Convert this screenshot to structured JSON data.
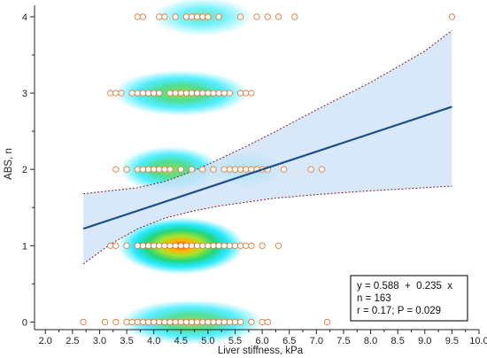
{
  "chart_data": {
    "type": "scatter",
    "xlabel": "Liver stiffness, kPa",
    "ylabel": "ABS, n",
    "xlim": [
      1.8,
      10.0
    ],
    "ylim": [
      -0.1,
      4.15
    ],
    "xticks": [
      "2.0",
      "2.5",
      "3.0",
      "3.5",
      "4.0",
      "4.5",
      "5.0",
      "5.5",
      "6.0",
      "6.5",
      "7.0",
      "7.5",
      "8.0",
      "8.5",
      "9.0",
      "9.5",
      "10.0"
    ],
    "yticks": [
      "0",
      "1",
      "2",
      "3",
      "4"
    ],
    "colors": {
      "regression_line": "#1b4f8a",
      "confidence_band": "#cfe3f7",
      "confidence_edge": "#8a1c2a",
      "point_fill": "#ffffff",
      "point_edge": "#e07a3a",
      "density_low": "#00e5ff",
      "density_mid": "#7ed321",
      "density_high": "#ff2a00"
    },
    "regression": {
      "intercept": 0.588,
      "slope": 0.235,
      "x_range": [
        2.7,
        9.5
      ],
      "ci_lower": [
        [
          2.7,
          0.76
        ],
        [
          3.2,
          1.02
        ],
        [
          3.7,
          1.22
        ],
        [
          4.2,
          1.36
        ],
        [
          4.7,
          1.45
        ],
        [
          5.2,
          1.52
        ],
        [
          5.7,
          1.57
        ],
        [
          6.2,
          1.62
        ],
        [
          7.0,
          1.67
        ],
        [
          8.0,
          1.72
        ],
        [
          9.0,
          1.76
        ],
        [
          9.5,
          1.78
        ]
      ],
      "ci_upper": [
        [
          2.7,
          1.68
        ],
        [
          3.2,
          1.72
        ],
        [
          3.7,
          1.76
        ],
        [
          4.2,
          1.84
        ],
        [
          4.7,
          1.97
        ],
        [
          5.2,
          2.13
        ],
        [
          5.7,
          2.3
        ],
        [
          6.2,
          2.48
        ],
        [
          7.0,
          2.78
        ],
        [
          8.0,
          3.14
        ],
        [
          9.0,
          3.55
        ],
        [
          9.5,
          3.82
        ]
      ]
    },
    "points": {
      "y0": [
        2.7,
        3.1,
        3.3,
        3.5,
        3.6,
        3.7,
        3.8,
        3.9,
        4.0,
        4.1,
        4.2,
        4.3,
        4.4,
        4.5,
        4.6,
        4.7,
        4.8,
        4.9,
        5.0,
        5.1,
        5.2,
        5.3,
        5.4,
        5.5,
        5.6,
        5.8,
        6.0,
        6.1,
        7.2
      ],
      "y1": [
        3.2,
        3.3,
        3.5,
        3.7,
        3.8,
        3.9,
        4.0,
        4.1,
        4.2,
        4.3,
        4.4,
        4.5,
        4.6,
        4.7,
        4.8,
        4.9,
        5.0,
        5.1,
        5.2,
        5.3,
        5.4,
        5.5,
        5.6,
        5.7,
        5.8,
        6.0,
        6.3
      ],
      "y2": [
        3.3,
        3.5,
        3.7,
        3.8,
        3.9,
        4.0,
        4.1,
        4.2,
        4.3,
        4.5,
        4.7,
        4.9,
        5.1,
        5.3,
        5.4,
        5.5,
        5.6,
        5.7,
        5.8,
        5.9,
        6.0,
        6.1,
        6.4,
        6.9,
        7.1
      ],
      "y3": [
        3.2,
        3.3,
        3.4,
        3.6,
        3.7,
        3.8,
        3.9,
        4.0,
        4.1,
        4.3,
        4.4,
        4.5,
        4.6,
        4.7,
        4.8,
        4.9,
        5.0,
        5.1,
        5.2,
        5.3,
        5.4,
        5.6,
        5.7,
        5.8
      ],
      "y4": [
        3.7,
        3.8,
        4.1,
        4.2,
        4.4,
        4.6,
        4.7,
        4.8,
        4.9,
        5.0,
        5.2,
        5.6,
        5.9,
        6.1,
        6.3,
        6.6,
        9.5
      ]
    },
    "density": [
      {
        "y": 0,
        "cx": 4.7,
        "sx": 0.85,
        "peak": 0.5
      },
      {
        "y": 1,
        "cx": 4.5,
        "sx": 0.75,
        "peak": 1.0
      },
      {
        "y": 2,
        "cx": 4.3,
        "sx": 0.6,
        "peak": 0.55
      },
      {
        "y": 2,
        "cx": 5.7,
        "sx": 0.45,
        "peak": 0.25
      },
      {
        "y": 3,
        "cx": 4.5,
        "sx": 0.8,
        "peak": 0.55
      },
      {
        "y": 4,
        "cx": 4.9,
        "sx": 0.6,
        "peak": 0.25
      }
    ],
    "annotation": {
      "line1": "y = 0.588  +  0.235  x",
      "line2": "n = 163",
      "line3": "r = 0.17; P = 0.029"
    }
  }
}
